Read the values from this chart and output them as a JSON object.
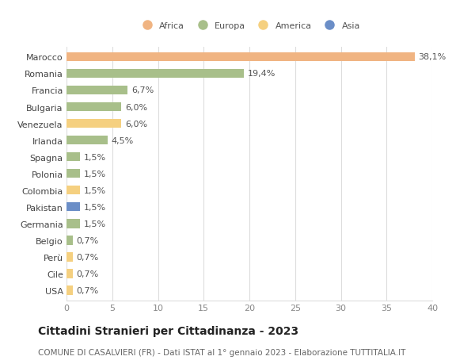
{
  "countries": [
    "Marocco",
    "Romania",
    "Francia",
    "Bulgaria",
    "Venezuela",
    "Irlanda",
    "Spagna",
    "Polonia",
    "Colombia",
    "Pakistan",
    "Germania",
    "Belgio",
    "Perù",
    "Cile",
    "USA"
  ],
  "values": [
    38.1,
    19.4,
    6.7,
    6.0,
    6.0,
    4.5,
    1.5,
    1.5,
    1.5,
    1.5,
    1.5,
    0.7,
    0.7,
    0.7,
    0.7
  ],
  "labels": [
    "38,1%",
    "19,4%",
    "6,7%",
    "6,0%",
    "6,0%",
    "4,5%",
    "1,5%",
    "1,5%",
    "1,5%",
    "1,5%",
    "1,5%",
    "0,7%",
    "0,7%",
    "0,7%",
    "0,7%"
  ],
  "colors": [
    "#f0b482",
    "#a8bf8a",
    "#a8bf8a",
    "#a8bf8a",
    "#f5d080",
    "#a8bf8a",
    "#a8bf8a",
    "#a8bf8a",
    "#f5d080",
    "#6b8ec7",
    "#a8bf8a",
    "#a8bf8a",
    "#f5d080",
    "#f5d080",
    "#f5d080"
  ],
  "legend_labels": [
    "Africa",
    "Europa",
    "America",
    "Asia"
  ],
  "legend_colors": [
    "#f0b482",
    "#a8bf8a",
    "#f5d080",
    "#6b8ec7"
  ],
  "title": "Cittadini Stranieri per Cittadinanza - 2023",
  "subtitle": "COMUNE DI CASALVIERI (FR) - Dati ISTAT al 1° gennaio 2023 - Elaborazione TUTTITALIA.IT",
  "xlim": [
    0,
    40
  ],
  "xticks": [
    0,
    5,
    10,
    15,
    20,
    25,
    30,
    35,
    40
  ],
  "bg_color": "#ffffff",
  "grid_color": "#dddddd",
  "label_fontsize": 8,
  "tick_fontsize": 8,
  "ytick_fontsize": 8,
  "title_fontsize": 10,
  "subtitle_fontsize": 7.5,
  "bar_height": 0.55
}
